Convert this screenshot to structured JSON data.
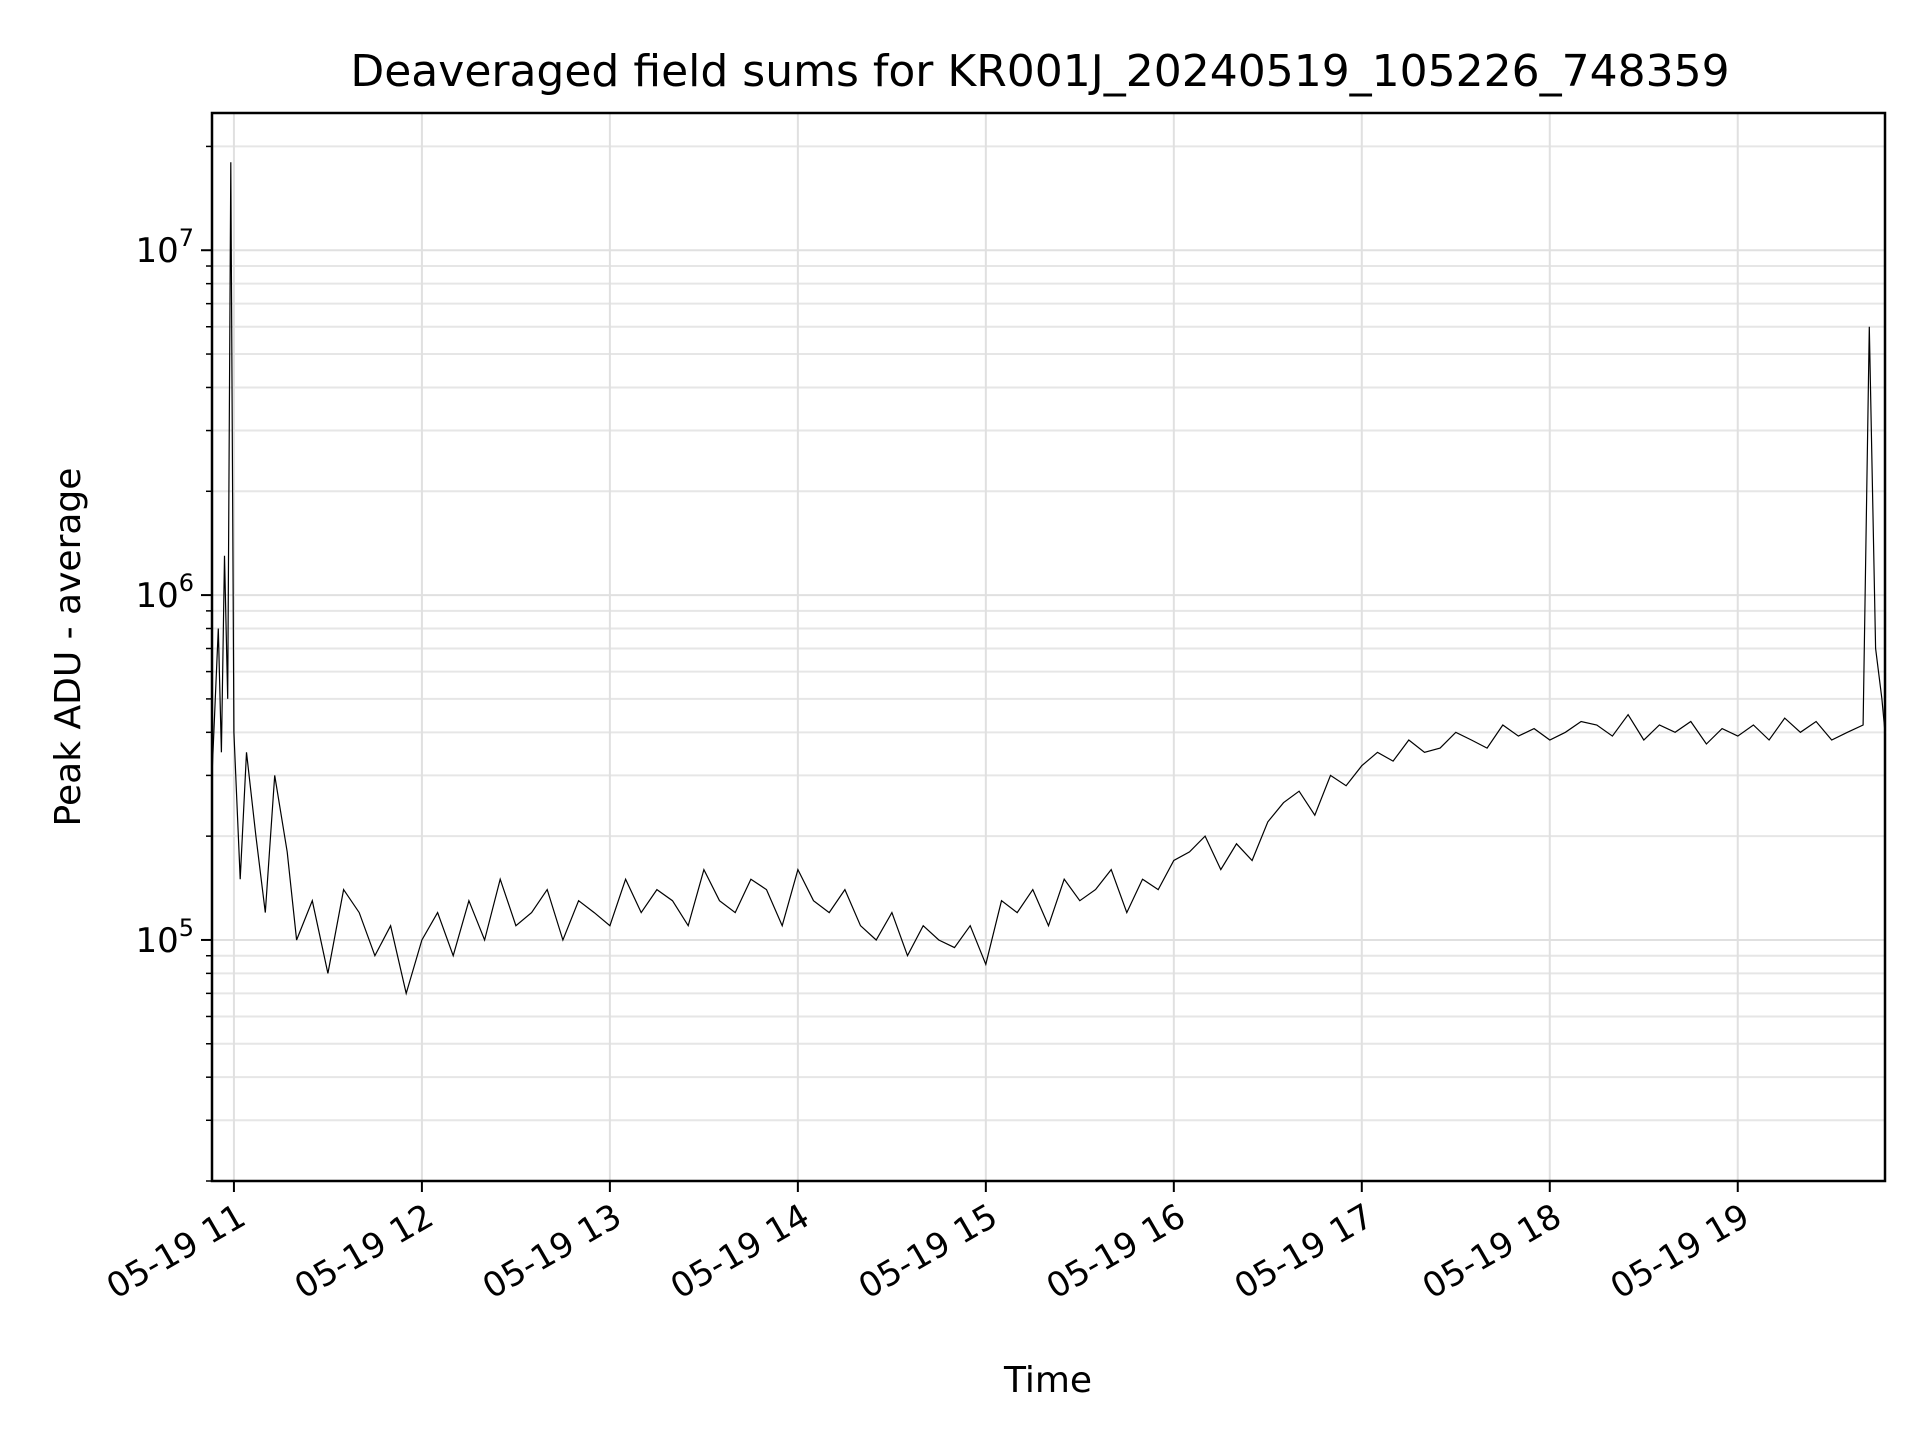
{
  "chart_data": {
    "type": "line",
    "title": "Deaveraged field sums for KR001J_20240519_105226_748359",
    "xlabel": "Time",
    "ylabel": "Peak ADU - average",
    "yscale": "log",
    "ylim": [
      20000,
      25000000
    ],
    "xlim": [
      "2024-05-19 10:53",
      "2024-05-19 19:47"
    ],
    "grid": "on",
    "x_ticks": [
      {
        "value": "2024-05-19 11:00",
        "label": "05-19 11"
      },
      {
        "value": "2024-05-19 12:00",
        "label": "05-19 12"
      },
      {
        "value": "2024-05-19 13:00",
        "label": "05-19 13"
      },
      {
        "value": "2024-05-19 14:00",
        "label": "05-19 14"
      },
      {
        "value": "2024-05-19 15:00",
        "label": "05-19 15"
      },
      {
        "value": "2024-05-19 16:00",
        "label": "05-19 16"
      },
      {
        "value": "2024-05-19 17:00",
        "label": "05-19 17"
      },
      {
        "value": "2024-05-19 18:00",
        "label": "05-19 18"
      },
      {
        "value": "2024-05-19 19:00",
        "label": "05-19 19"
      }
    ],
    "y_ticks": [
      {
        "value": 100000,
        "base": "10",
        "exp": "5"
      },
      {
        "value": 1000000,
        "base": "10",
        "exp": "6"
      },
      {
        "value": 10000000,
        "base": "10",
        "exp": "7"
      }
    ],
    "series": [
      {
        "color": "#000000",
        "x": [
          "2024-05-19 10:53",
          "2024-05-19 10:55",
          "2024-05-19 10:56",
          "2024-05-19 10:57",
          "2024-05-19 10:58",
          "2024-05-19 10:59",
          "2024-05-19 11:00",
          "2024-05-19 11:02",
          "2024-05-19 11:04",
          "2024-05-19 11:07",
          "2024-05-19 11:10",
          "2024-05-19 11:13",
          "2024-05-19 11:17",
          "2024-05-19 11:20",
          "2024-05-19 11:25",
          "2024-05-19 11:30",
          "2024-05-19 11:35",
          "2024-05-19 11:40",
          "2024-05-19 11:45",
          "2024-05-19 11:50",
          "2024-05-19 11:55",
          "2024-05-19 12:00",
          "2024-05-19 12:05",
          "2024-05-19 12:10",
          "2024-05-19 12:15",
          "2024-05-19 12:20",
          "2024-05-19 12:25",
          "2024-05-19 12:30",
          "2024-05-19 12:35",
          "2024-05-19 12:40",
          "2024-05-19 12:45",
          "2024-05-19 12:50",
          "2024-05-19 12:55",
          "2024-05-19 13:00",
          "2024-05-19 13:05",
          "2024-05-19 13:10",
          "2024-05-19 13:15",
          "2024-05-19 13:20",
          "2024-05-19 13:25",
          "2024-05-19 13:30",
          "2024-05-19 13:35",
          "2024-05-19 13:40",
          "2024-05-19 13:45",
          "2024-05-19 13:50",
          "2024-05-19 13:55",
          "2024-05-19 14:00",
          "2024-05-19 14:05",
          "2024-05-19 14:10",
          "2024-05-19 14:15",
          "2024-05-19 14:20",
          "2024-05-19 14:25",
          "2024-05-19 14:30",
          "2024-05-19 14:35",
          "2024-05-19 14:40",
          "2024-05-19 14:45",
          "2024-05-19 14:50",
          "2024-05-19 14:55",
          "2024-05-19 15:00",
          "2024-05-19 15:05",
          "2024-05-19 15:10",
          "2024-05-19 15:15",
          "2024-05-19 15:20",
          "2024-05-19 15:25",
          "2024-05-19 15:30",
          "2024-05-19 15:35",
          "2024-05-19 15:40",
          "2024-05-19 15:45",
          "2024-05-19 15:50",
          "2024-05-19 15:55",
          "2024-05-19 16:00",
          "2024-05-19 16:05",
          "2024-05-19 16:10",
          "2024-05-19 16:15",
          "2024-05-19 16:20",
          "2024-05-19 16:25",
          "2024-05-19 16:30",
          "2024-05-19 16:35",
          "2024-05-19 16:40",
          "2024-05-19 16:45",
          "2024-05-19 16:50",
          "2024-05-19 16:55",
          "2024-05-19 17:00",
          "2024-05-19 17:05",
          "2024-05-19 17:10",
          "2024-05-19 17:15",
          "2024-05-19 17:20",
          "2024-05-19 17:25",
          "2024-05-19 17:30",
          "2024-05-19 17:35",
          "2024-05-19 17:40",
          "2024-05-19 17:45",
          "2024-05-19 17:50",
          "2024-05-19 17:55",
          "2024-05-19 18:00",
          "2024-05-19 18:05",
          "2024-05-19 18:10",
          "2024-05-19 18:15",
          "2024-05-19 18:20",
          "2024-05-19 18:25",
          "2024-05-19 18:30",
          "2024-05-19 18:35",
          "2024-05-19 18:40",
          "2024-05-19 18:45",
          "2024-05-19 18:50",
          "2024-05-19 18:55",
          "2024-05-19 19:00",
          "2024-05-19 19:05",
          "2024-05-19 19:10",
          "2024-05-19 19:15",
          "2024-05-19 19:20",
          "2024-05-19 19:25",
          "2024-05-19 19:30",
          "2024-05-19 19:35",
          "2024-05-19 19:40",
          "2024-05-19 19:42",
          "2024-05-19 19:44",
          "2024-05-19 19:46",
          "2024-05-19 19:47"
        ],
        "y": [
          300000,
          800000,
          350000,
          1300000,
          500000,
          18000000,
          400000,
          150000,
          350000,
          200000,
          120000,
          300000,
          180000,
          100000,
          130000,
          80000,
          140000,
          120000,
          90000,
          110000,
          70000,
          100000,
          120000,
          90000,
          130000,
          100000,
          150000,
          110000,
          120000,
          140000,
          100000,
          130000,
          120000,
          110000,
          150000,
          120000,
          140000,
          130000,
          110000,
          160000,
          130000,
          120000,
          150000,
          140000,
          110000,
          160000,
          130000,
          120000,
          140000,
          110000,
          100000,
          120000,
          90000,
          110000,
          100000,
          95000,
          110000,
          85000,
          130000,
          120000,
          140000,
          110000,
          150000,
          130000,
          140000,
          160000,
          120000,
          150000,
          140000,
          170000,
          180000,
          200000,
          160000,
          190000,
          170000,
          220000,
          250000,
          270000,
          230000,
          300000,
          280000,
          320000,
          350000,
          330000,
          380000,
          350000,
          360000,
          400000,
          380000,
          360000,
          420000,
          390000,
          410000,
          380000,
          400000,
          430000,
          420000,
          390000,
          450000,
          380000,
          420000,
          400000,
          430000,
          370000,
          410000,
          390000,
          420000,
          380000,
          440000,
          400000,
          430000,
          380000,
          400000,
          420000,
          6000000,
          700000,
          500000,
          400000
        ]
      }
    ]
  }
}
